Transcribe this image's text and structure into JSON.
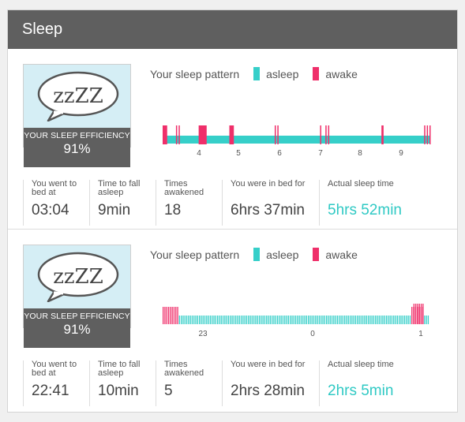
{
  "panel": {
    "title": "Sleep"
  },
  "colors": {
    "asleep": "#36cfc9",
    "awake": "#ef2f6a",
    "accent": "#2fc9c4",
    "header": "#5f5f5f",
    "efficiency_bg": "#d5eef5"
  },
  "records": [
    {
      "bubble_text": "zzZZ",
      "efficiency_label": "YOUR SLEEP EFFICIENCY",
      "efficiency_value": "91%",
      "pattern_label": "Your sleep pattern",
      "legend": {
        "asleep": "asleep",
        "awake": "awake"
      },
      "chart_data": {
        "type": "bar",
        "ticks": [
          "4",
          "5",
          "6",
          "7",
          "8",
          "9"
        ],
        "awake_bars": [
          {
            "position": 0.0,
            "duration": 0.017,
            "height": "tall"
          },
          {
            "position": 0.05,
            "duration": 0.004,
            "height": "tall"
          },
          {
            "position": 0.06,
            "duration": 0.004,
            "height": "tall"
          },
          {
            "position": 0.135,
            "duration": 0.03,
            "height": "tall"
          },
          {
            "position": 0.25,
            "duration": 0.017,
            "height": "tall"
          },
          {
            "position": 0.42,
            "duration": 0.004,
            "height": "tall"
          },
          {
            "position": 0.43,
            "duration": 0.004,
            "height": "tall"
          },
          {
            "position": 0.59,
            "duration": 0.004,
            "height": "tall"
          },
          {
            "position": 0.61,
            "duration": 0.004,
            "height": "tall"
          },
          {
            "position": 0.62,
            "duration": 0.004,
            "height": "tall"
          },
          {
            "position": 0.82,
            "duration": 0.008,
            "height": "tall"
          },
          {
            "position": 0.98,
            "duration": 0.004,
            "height": "tall"
          },
          {
            "position": 0.99,
            "duration": 0.004,
            "height": "tall"
          },
          {
            "position": 1.0,
            "duration": 0.004,
            "height": "tall"
          }
        ]
      },
      "stats": [
        {
          "label": "You went to bed at",
          "value": "03:04",
          "accent": false
        },
        {
          "label": "Time to fall asleep",
          "value": "9min",
          "accent": false
        },
        {
          "label": "Times awakened",
          "value": "18",
          "accent": false
        },
        {
          "label": "You were in bed for",
          "value": "6hrs 37min",
          "accent": false
        },
        {
          "label": "Actual sleep time",
          "value": "5hrs 52min",
          "accent": true
        }
      ]
    },
    {
      "bubble_text": "zzZZ",
      "efficiency_label": "YOUR SLEEP EFFICIENCY",
      "efficiency_value": "91%",
      "pattern_label": "Your sleep pattern",
      "legend": {
        "asleep": "asleep",
        "awake": "awake"
      },
      "chart_data": {
        "type": "bar",
        "ticks": [
          "23",
          "0",
          "1"
        ],
        "awake_bars": [
          {
            "position": 0.0,
            "duration": 0.06,
            "height": "tall"
          },
          {
            "position": 0.505,
            "duration": 0.004,
            "height": "tall"
          },
          {
            "position": 0.545,
            "duration": 0.004,
            "height": "tall"
          },
          {
            "position": 0.93,
            "duration": 0.045,
            "height": "tall"
          }
        ]
      },
      "stats": [
        {
          "label": "You went to bed at",
          "value": "22:41",
          "accent": false
        },
        {
          "label": "Time to fall asleep",
          "value": "10min",
          "accent": false
        },
        {
          "label": "Times awakened",
          "value": "5",
          "accent": false
        },
        {
          "label": "You were in bed for",
          "value": "2hrs 28min",
          "accent": false
        },
        {
          "label": "Actual sleep time",
          "value": "2hrs 5min",
          "accent": true
        }
      ]
    }
  ]
}
